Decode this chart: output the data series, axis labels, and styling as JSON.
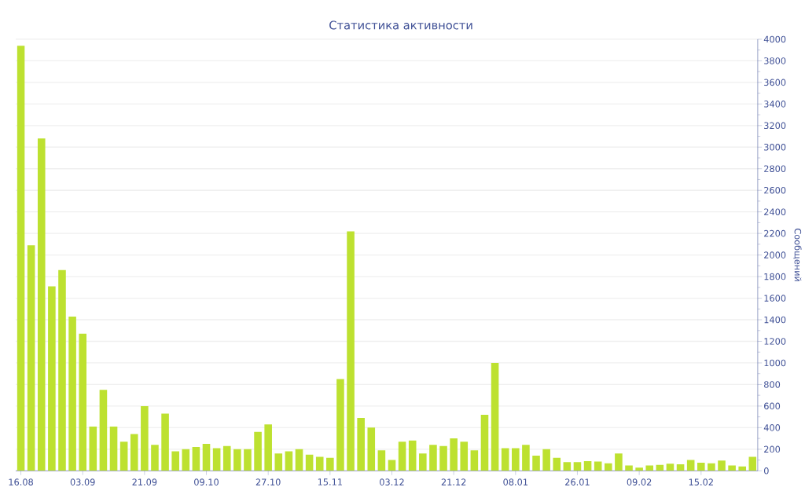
{
  "chart_data": {
    "type": "bar",
    "title": "Статистика активности",
    "ylabel": "Сообщений",
    "categories": [
      "16.08",
      null,
      null,
      null,
      null,
      null,
      "03.09",
      null,
      null,
      null,
      null,
      null,
      "21.09",
      null,
      null,
      null,
      null,
      null,
      "09.10",
      null,
      null,
      null,
      null,
      null,
      "27.10",
      null,
      null,
      null,
      null,
      null,
      "15.11",
      null,
      null,
      null,
      null,
      null,
      "03.12",
      null,
      null,
      null,
      null,
      null,
      "21.12",
      null,
      null,
      null,
      null,
      null,
      "08.01",
      null,
      null,
      null,
      null,
      null,
      "26.01",
      null,
      null,
      null,
      null,
      null,
      "09.02",
      null,
      null,
      null,
      null,
      null,
      "15.02",
      null,
      null,
      null,
      null,
      null
    ],
    "values": [
      3940,
      2090,
      3080,
      1710,
      1860,
      1430,
      1270,
      410,
      750,
      410,
      270,
      340,
      600,
      240,
      530,
      180,
      200,
      220,
      250,
      210,
      230,
      200,
      200,
      360,
      430,
      160,
      180,
      200,
      150,
      130,
      120,
      850,
      2220,
      490,
      400,
      190,
      100,
      270,
      280,
      160,
      240,
      230,
      300,
      270,
      190,
      520,
      1000,
      210,
      210,
      240,
      140,
      200,
      120,
      80,
      80,
      90,
      85,
      70,
      160,
      50,
      30,
      50,
      55,
      65,
      60,
      100,
      75,
      70,
      95,
      50,
      40,
      130
    ],
    "color": "#bde130",
    "ylim": [
      0,
      4000
    ],
    "yticks": [
      0,
      200,
      400,
      600,
      800,
      1000,
      1200,
      1400,
      1600,
      1800,
      2000,
      2200,
      2400,
      2600,
      2800,
      3000,
      3200,
      3400,
      3600,
      3800,
      4000
    ],
    "grid": "y"
  }
}
